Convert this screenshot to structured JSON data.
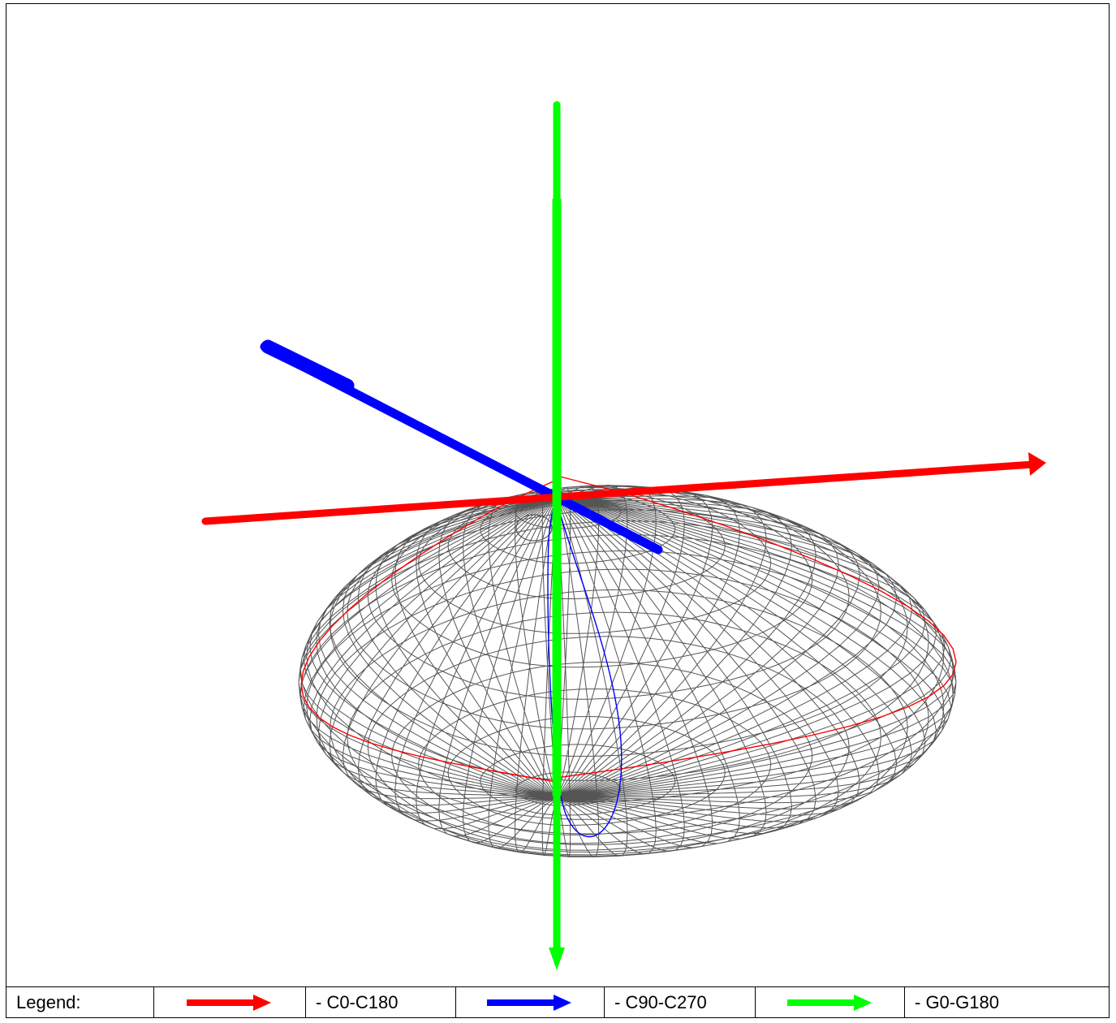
{
  "legend": {
    "title": "Legend:",
    "items": [
      {
        "label": "- C0-C180",
        "color": "#ff0000"
      },
      {
        "label": "- C90-C270",
        "color": "#0000ff"
      },
      {
        "label": "- G0-G180",
        "color": "#00ff00"
      }
    ]
  },
  "colors": {
    "mesh": "#555555",
    "c0_c180": "#ff0000",
    "c90_c270": "#0000ff",
    "g0_g180": "#00ff00"
  }
}
